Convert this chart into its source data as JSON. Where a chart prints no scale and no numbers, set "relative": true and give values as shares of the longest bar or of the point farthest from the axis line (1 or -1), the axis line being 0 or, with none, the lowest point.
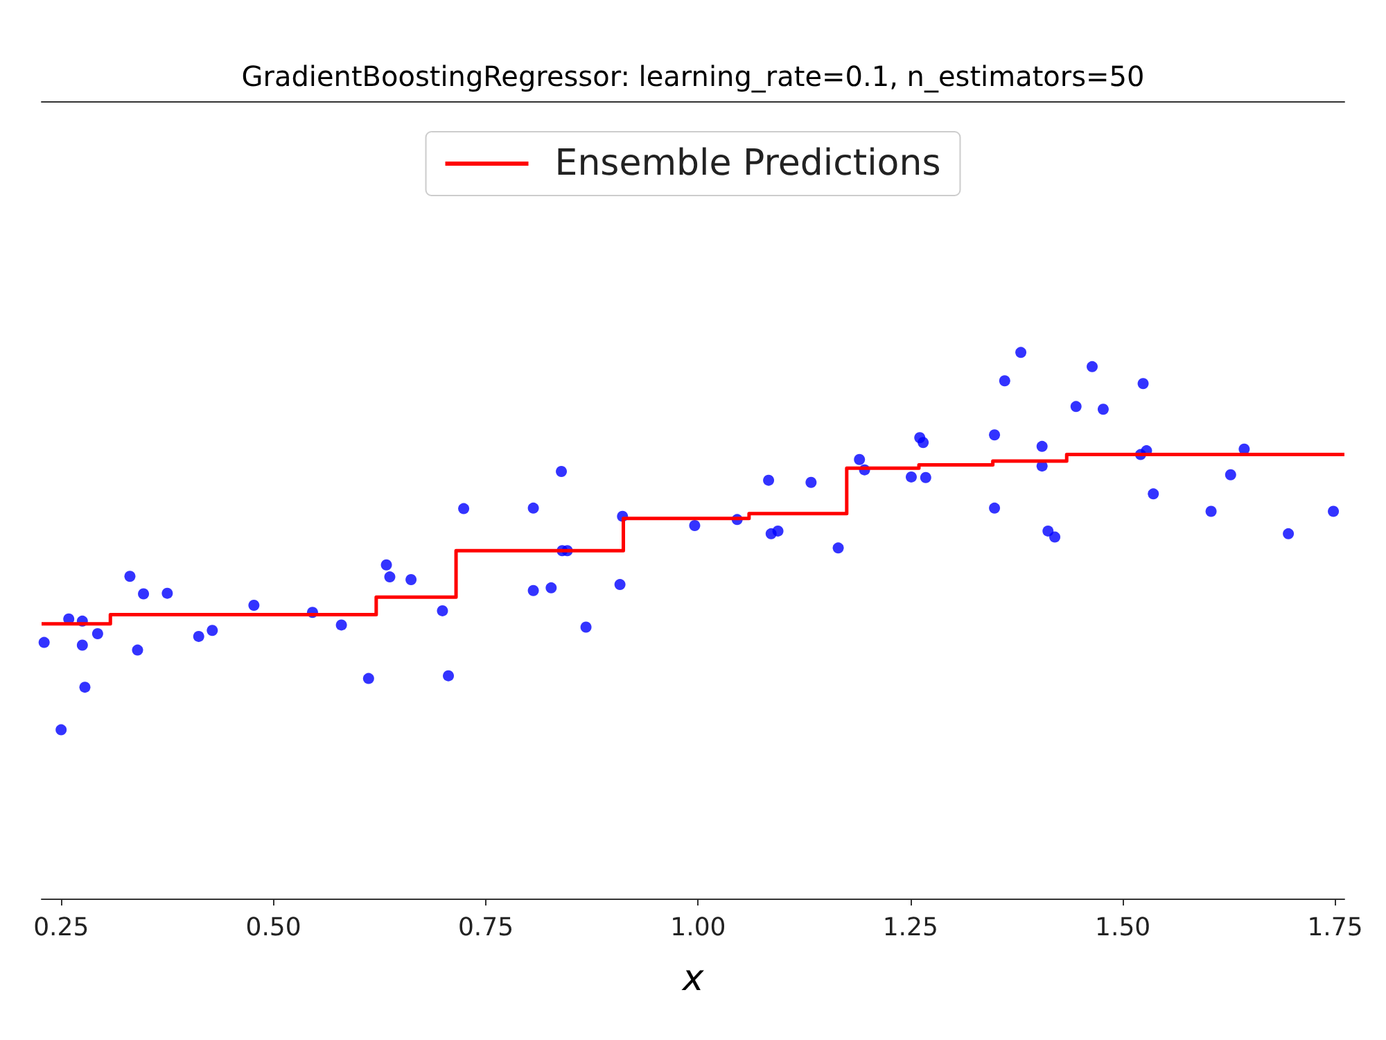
{
  "chart_data": {
    "type": "scatter",
    "title": "GradientBoostingRegressor: learning_rate=0.1, n_estimators=50",
    "xlabel": "x",
    "relative": true,
    "grid": false,
    "legend": "top",
    "tick_labels": "x",
    "xlim": [
      0.227,
      1.761
    ],
    "xticks": [
      {
        "value": 0.25,
        "label": "0.25"
      },
      {
        "value": 0.5,
        "label": "0.50"
      },
      {
        "value": 0.75,
        "label": "0.75"
      },
      {
        "value": 1,
        "label": "1.00"
      },
      {
        "value": 1.25,
        "label": "1.25"
      },
      {
        "value": 1.5,
        "label": "1.50"
      },
      {
        "value": 1.75,
        "label": "1.75"
      }
    ],
    "series": [
      {
        "marker": "circle",
        "color": "#0000ff",
        "x": [
          0.23,
          0.25,
          0.259,
          0.275,
          0.275,
          0.278,
          0.293,
          0.331,
          0.347,
          0.34,
          0.375,
          0.412,
          0.428,
          0.477,
          0.546,
          0.58,
          0.612,
          0.633,
          0.637,
          0.662,
          0.699,
          0.706,
          0.724,
          0.806,
          0.839,
          0.806,
          0.827,
          0.84,
          0.846,
          0.868,
          0.908,
          0.911,
          0.996,
          1.046,
          1.083,
          1.086,
          1.094,
          1.133,
          1.165,
          1.19,
          1.196,
          1.251,
          1.268,
          1.261,
          1.265,
          1.361,
          1.38,
          1.349,
          1.349,
          1.405,
          1.405,
          1.412,
          1.42,
          1.445,
          1.464,
          1.477,
          1.524,
          1.521,
          1.528,
          1.536,
          1.604,
          1.627,
          1.643,
          1.695,
          1.748
        ],
        "values": [
          0.469,
          0.309,
          0.512,
          0.508,
          0.464,
          0.387,
          0.485,
          0.59,
          0.558,
          0.455,
          0.559,
          0.48,
          0.491,
          0.537,
          0.524,
          0.501,
          0.403,
          0.611,
          0.589,
          0.584,
          0.527,
          0.408,
          0.714,
          0.715,
          0.782,
          0.564,
          0.569,
          0.637,
          0.637,
          0.497,
          0.575,
          0.7,
          0.683,
          0.694,
          0.766,
          0.668,
          0.673,
          0.762,
          0.642,
          0.804,
          0.785,
          0.772,
          0.771,
          0.844,
          0.835,
          0.948,
          1,
          0.849,
          0.715,
          0.828,
          0.792,
          0.673,
          0.662,
          0.901,
          0.974,
          0.896,
          0.943,
          0.813,
          0.82,
          0.741,
          0.709,
          0.776,
          0.823,
          0.668,
          0.709
        ]
      },
      {
        "type": "step",
        "name": "Ensemble Predictions",
        "color": "#ff0000",
        "x": [
          0.227,
          0.308,
          0.621,
          0.715,
          0.912,
          1.06,
          1.175,
          1.26,
          1.347,
          1.434,
          1.761
        ],
        "values": [
          0.503,
          0.52,
          0.552,
          0.637,
          0.696,
          0.705,
          0.788,
          0.794,
          0.801,
          0.813,
          0.813
        ]
      }
    ]
  }
}
